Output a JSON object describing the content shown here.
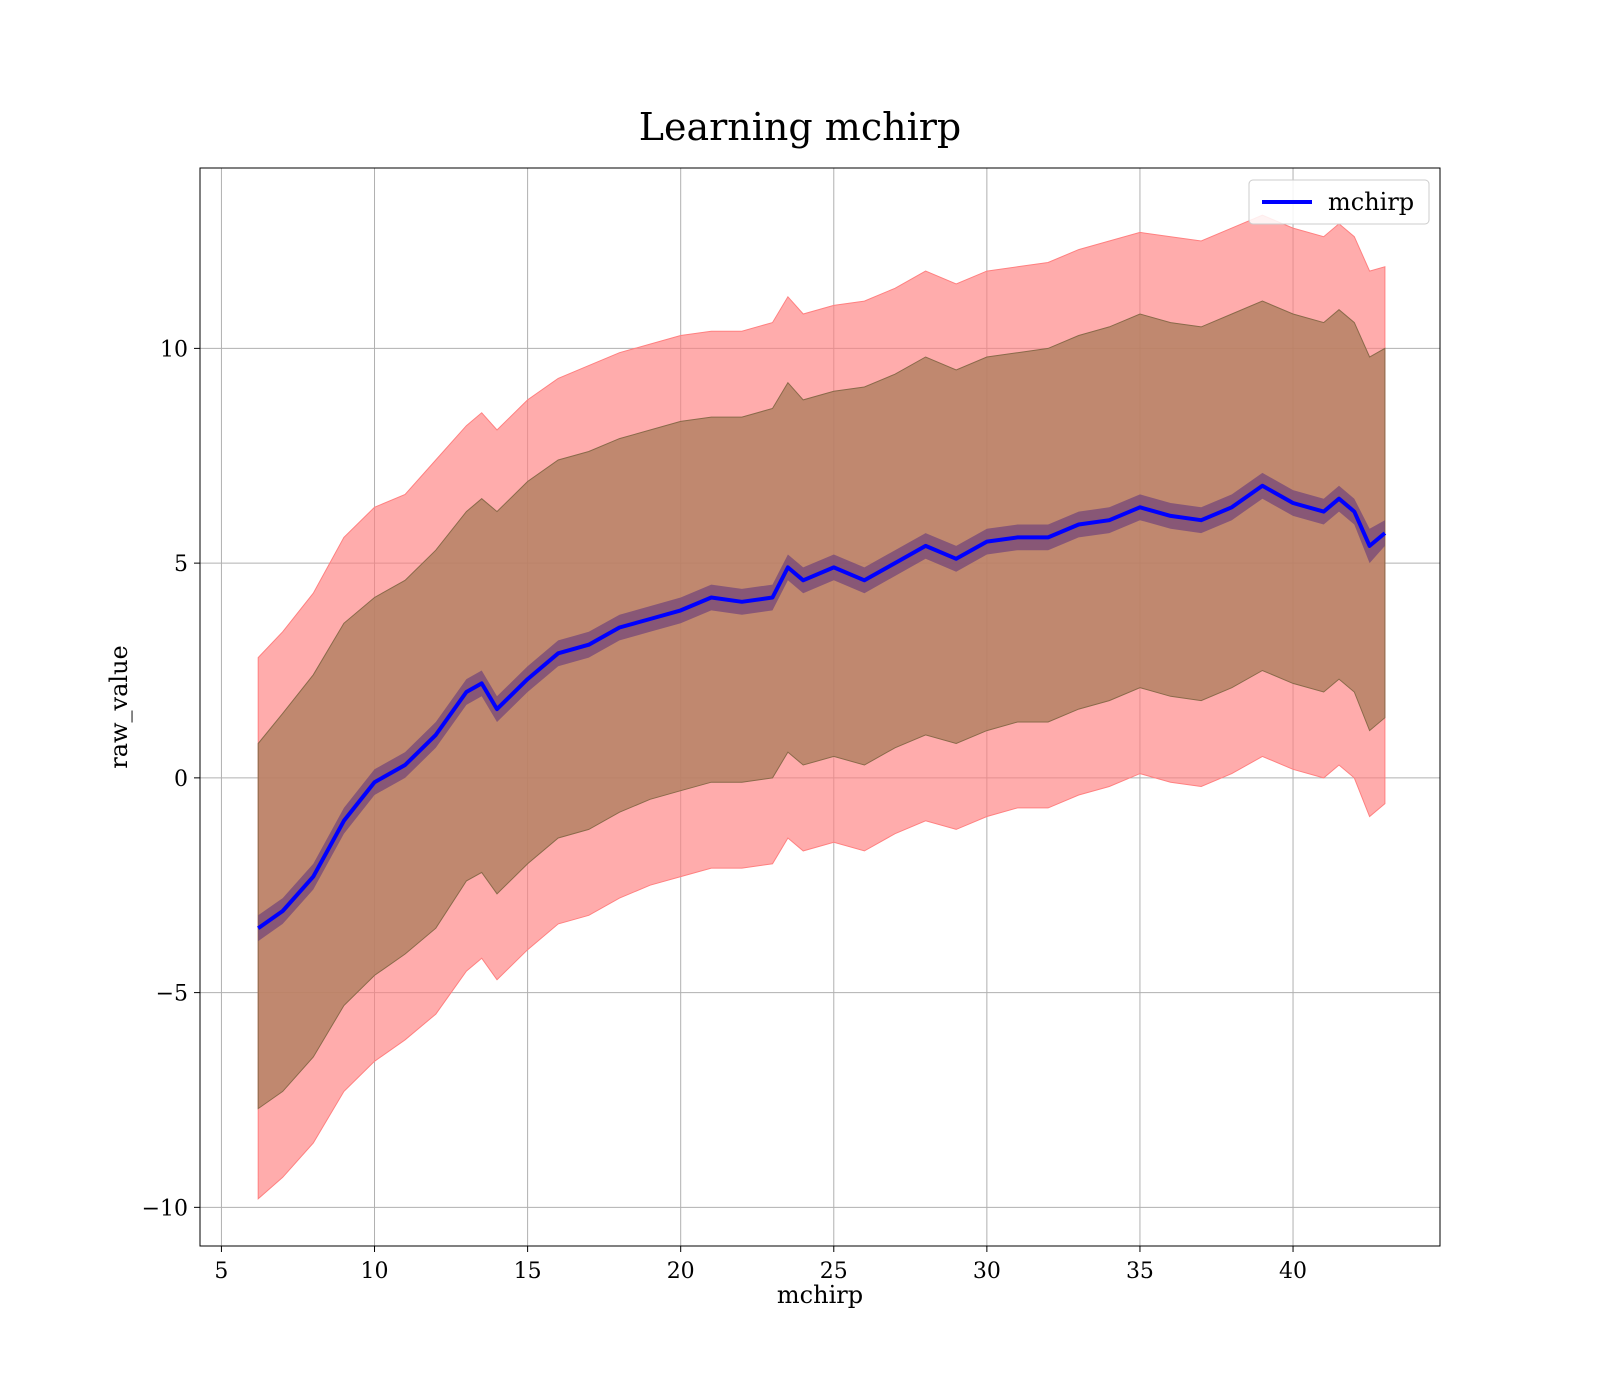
{
  "chart_data": {
    "type": "line",
    "title": "Learning mchirp",
    "xlabel": "mchirp",
    "ylabel": "raw_value",
    "xlim": [
      4.3,
      44.8
    ],
    "ylim": [
      -10.9,
      14.2
    ],
    "xticks": [
      5,
      10,
      15,
      20,
      25,
      30,
      35,
      40
    ],
    "yticks": [
      -10,
      -5,
      0,
      5,
      10
    ],
    "ytick_labels": [
      "−10",
      "−5",
      "0",
      "5",
      "10"
    ],
    "grid": true,
    "legend_position": "upper-right",
    "colors": {
      "line": "#0000ff",
      "outer_band": "#ff8080",
      "middle_band": "#b07f60",
      "inner_band": "#6a3d7a",
      "grid": "#b0b0b0"
    },
    "series": [
      {
        "name": "mchirp",
        "x": [
          6.2,
          7,
          8,
          9,
          10,
          11,
          12,
          13,
          13.5,
          14,
          15,
          16,
          17,
          18,
          19,
          20,
          21,
          22,
          23,
          23.5,
          24,
          25,
          26,
          27,
          28,
          29,
          30,
          31,
          32,
          33,
          34,
          35,
          36,
          37,
          38,
          39,
          40,
          41,
          41.5,
          42,
          42.5,
          43
        ],
        "mean": [
          -3.5,
          -3.1,
          -2.3,
          -1.0,
          -0.1,
          0.3,
          1.0,
          2.0,
          2.2,
          1.6,
          2.3,
          2.9,
          3.1,
          3.5,
          3.7,
          3.9,
          4.2,
          4.1,
          4.2,
          4.9,
          4.6,
          4.9,
          4.6,
          5.0,
          5.4,
          5.1,
          5.5,
          5.6,
          5.6,
          5.9,
          6.0,
          6.3,
          6.1,
          6.0,
          6.3,
          6.8,
          6.4,
          6.2,
          6.5,
          6.2,
          5.4,
          5.7
        ],
        "inner_upper": [
          -3.2,
          -2.8,
          -2.0,
          -0.7,
          0.2,
          0.6,
          1.3,
          2.3,
          2.5,
          1.9,
          2.6,
          3.2,
          3.4,
          3.8,
          4.0,
          4.2,
          4.5,
          4.4,
          4.5,
          5.2,
          4.9,
          5.2,
          4.9,
          5.3,
          5.7,
          5.4,
          5.8,
          5.9,
          5.9,
          6.2,
          6.3,
          6.6,
          6.4,
          6.3,
          6.6,
          7.1,
          6.7,
          6.5,
          6.8,
          6.5,
          5.8,
          6.0
        ],
        "inner_lower": [
          -3.8,
          -3.4,
          -2.6,
          -1.3,
          -0.4,
          0.0,
          0.7,
          1.7,
          1.9,
          1.3,
          2.0,
          2.6,
          2.8,
          3.2,
          3.4,
          3.6,
          3.9,
          3.8,
          3.9,
          4.6,
          4.3,
          4.6,
          4.3,
          4.7,
          5.1,
          4.8,
          5.2,
          5.3,
          5.3,
          5.6,
          5.7,
          6.0,
          5.8,
          5.7,
          6.0,
          6.5,
          6.1,
          5.9,
          6.2,
          5.9,
          5.0,
          5.4
        ],
        "middle_upper": [
          0.8,
          1.5,
          2.4,
          3.6,
          4.2,
          4.6,
          5.3,
          6.2,
          6.5,
          6.2,
          6.9,
          7.4,
          7.6,
          7.9,
          8.1,
          8.3,
          8.4,
          8.4,
          8.6,
          9.2,
          8.8,
          9.0,
          9.1,
          9.4,
          9.8,
          9.5,
          9.8,
          9.9,
          10.0,
          10.3,
          10.5,
          10.8,
          10.6,
          10.5,
          10.8,
          11.1,
          10.8,
          10.6,
          10.9,
          10.6,
          9.8,
          10.0
        ],
        "middle_lower": [
          -7.7,
          -7.3,
          -6.5,
          -5.3,
          -4.6,
          -4.1,
          -3.5,
          -2.4,
          -2.2,
          -2.7,
          -2.0,
          -1.4,
          -1.2,
          -0.8,
          -0.5,
          -0.3,
          -0.1,
          -0.1,
          0.0,
          0.6,
          0.3,
          0.5,
          0.3,
          0.7,
          1.0,
          0.8,
          1.1,
          1.3,
          1.3,
          1.6,
          1.8,
          2.1,
          1.9,
          1.8,
          2.1,
          2.5,
          2.2,
          2.0,
          2.3,
          2.0,
          1.1,
          1.4
        ],
        "outer_upper": [
          2.8,
          3.4,
          4.3,
          5.6,
          6.3,
          6.6,
          7.4,
          8.2,
          8.5,
          8.1,
          8.8,
          9.3,
          9.6,
          9.9,
          10.1,
          10.3,
          10.4,
          10.4,
          10.6,
          11.2,
          10.8,
          11.0,
          11.1,
          11.4,
          11.8,
          11.5,
          11.8,
          11.9,
          12.0,
          12.3,
          12.5,
          12.7,
          12.6,
          12.5,
          12.8,
          13.1,
          12.8,
          12.6,
          12.9,
          12.6,
          11.8,
          11.9
        ],
        "outer_lower": [
          -9.8,
          -9.3,
          -8.5,
          -7.3,
          -6.6,
          -6.1,
          -5.5,
          -4.5,
          -4.2,
          -4.7,
          -4.0,
          -3.4,
          -3.2,
          -2.8,
          -2.5,
          -2.3,
          -2.1,
          -2.1,
          -2.0,
          -1.4,
          -1.7,
          -1.5,
          -1.7,
          -1.3,
          -1.0,
          -1.2,
          -0.9,
          -0.7,
          -0.7,
          -0.4,
          -0.2,
          0.1,
          -0.1,
          -0.2,
          0.1,
          0.5,
          0.2,
          0.0,
          0.3,
          0.0,
          -0.9,
          -0.6
        ]
      }
    ]
  }
}
